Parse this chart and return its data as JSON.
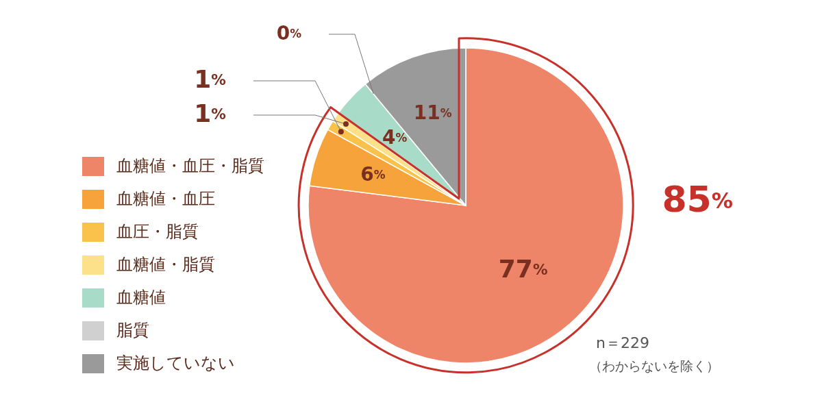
{
  "chart_data": {
    "type": "pie",
    "categories": [
      "血糖値・血圧・脂質",
      "血糖値・血圧",
      "血圧・脂質",
      "血糖値・脂質",
      "血糖値",
      "脂質",
      "実施していない"
    ],
    "values": [
      77,
      6,
      1,
      1,
      4,
      0,
      11
    ],
    "colors": [
      "#ee8468",
      "#f5a33a",
      "#f9c24a",
      "#fde08a",
      "#a8dcc8",
      "#d0d0d0",
      "#9a9a9a"
    ],
    "value_labels": [
      "77%",
      "6%",
      "1%",
      "1%",
      "4%",
      "0%",
      "11%"
    ],
    "legend": "left",
    "annotations": [
      "85%",
      "n＝229",
      "（わからないを除く）"
    ]
  }
}
